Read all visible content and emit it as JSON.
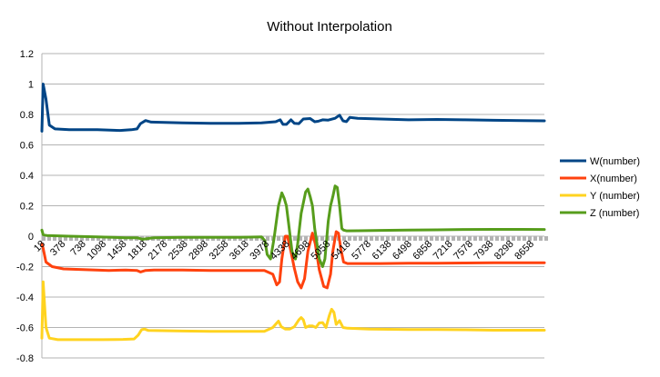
{
  "chart_data": {
    "type": "line",
    "title": "Without Interpolation",
    "ylim": [
      -0.8,
      1.2
    ],
    "y_ticks": [
      -0.8,
      -0.6,
      -0.4,
      -0.2,
      0,
      0.2,
      0.4,
      0.6,
      0.8,
      1,
      1.2
    ],
    "y_tick_labels": [
      "-0.8",
      "-0.6",
      "-0.4",
      "-0.2",
      "0",
      "0.2",
      "0.4",
      "0.6",
      "0.8",
      "1",
      "1.2"
    ],
    "x_range": [
      18,
      8900
    ],
    "x_ticks": [
      18,
      378,
      738,
      1098,
      1458,
      1818,
      2178,
      2538,
      2898,
      3258,
      3618,
      3978,
      4338,
      4698,
      5058,
      5418,
      5778,
      6138,
      6498,
      6858,
      7218,
      7578,
      7938,
      8298,
      8658
    ],
    "x_tick_labels": [
      "18",
      "378",
      "738",
      "1098",
      "1458",
      "1818",
      "2178",
      "2538",
      "2898",
      "3258",
      "3618",
      "3978",
      "4338",
      "4698",
      "5058",
      "5418",
      "5778",
      "6138",
      "6498",
      "6858",
      "7218",
      "7578",
      "7938",
      "8298",
      "8658"
    ],
    "grid": "horizontal",
    "legend_position": "right",
    "series": [
      {
        "name": "W(number)",
        "color": "#004586",
        "points": [
          [
            18,
            0.69
          ],
          [
            40,
            1.0
          ],
          [
            90,
            0.9
          ],
          [
            150,
            0.73
          ],
          [
            250,
            0.705
          ],
          [
            500,
            0.7
          ],
          [
            1000,
            0.7
          ],
          [
            1400,
            0.695
          ],
          [
            1600,
            0.7
          ],
          [
            1700,
            0.705
          ],
          [
            1760,
            0.74
          ],
          [
            1850,
            0.76
          ],
          [
            1950,
            0.75
          ],
          [
            2500,
            0.745
          ],
          [
            3000,
            0.742
          ],
          [
            3500,
            0.742
          ],
          [
            3900,
            0.745
          ],
          [
            4150,
            0.752
          ],
          [
            4230,
            0.765
          ],
          [
            4280,
            0.735
          ],
          [
            4340,
            0.735
          ],
          [
            4420,
            0.765
          ],
          [
            4480,
            0.742
          ],
          [
            4560,
            0.74
          ],
          [
            4640,
            0.77
          ],
          [
            4760,
            0.773
          ],
          [
            4840,
            0.752
          ],
          [
            4900,
            0.755
          ],
          [
            4980,
            0.765
          ],
          [
            5080,
            0.763
          ],
          [
            5200,
            0.775
          ],
          [
            5280,
            0.795
          ],
          [
            5340,
            0.758
          ],
          [
            5400,
            0.753
          ],
          [
            5460,
            0.78
          ],
          [
            5600,
            0.775
          ],
          [
            6000,
            0.77
          ],
          [
            6500,
            0.765
          ],
          [
            7000,
            0.767
          ],
          [
            7500,
            0.765
          ],
          [
            8000,
            0.762
          ],
          [
            8500,
            0.76
          ],
          [
            8900,
            0.758
          ]
        ]
      },
      {
        "name": "X(number)",
        "color": "#ff420e",
        "points": [
          [
            18,
            -0.05
          ],
          [
            40,
            -0.08
          ],
          [
            90,
            -0.17
          ],
          [
            200,
            -0.2
          ],
          [
            400,
            -0.215
          ],
          [
            800,
            -0.22
          ],
          [
            1200,
            -0.225
          ],
          [
            1500,
            -0.222
          ],
          [
            1700,
            -0.225
          ],
          [
            1760,
            -0.235
          ],
          [
            1850,
            -0.225
          ],
          [
            2000,
            -0.222
          ],
          [
            2500,
            -0.222
          ],
          [
            3000,
            -0.225
          ],
          [
            3500,
            -0.225
          ],
          [
            3950,
            -0.225
          ],
          [
            4100,
            -0.25
          ],
          [
            4170,
            -0.32
          ],
          [
            4220,
            -0.3
          ],
          [
            4260,
            -0.15
          ],
          [
            4320,
            0.0
          ],
          [
            4360,
            0.0
          ],
          [
            4420,
            -0.1
          ],
          [
            4480,
            -0.21
          ],
          [
            4540,
            -0.3
          ],
          [
            4600,
            -0.34
          ],
          [
            4660,
            -0.28
          ],
          [
            4720,
            -0.1
          ],
          [
            4800,
            0.02
          ],
          [
            4850,
            -0.05
          ],
          [
            4920,
            -0.22
          ],
          [
            5000,
            -0.33
          ],
          [
            5060,
            -0.34
          ],
          [
            5120,
            -0.25
          ],
          [
            5160,
            -0.1
          ],
          [
            5220,
            0.03
          ],
          [
            5260,
            0.02
          ],
          [
            5300,
            -0.08
          ],
          [
            5350,
            -0.17
          ],
          [
            5420,
            -0.18
          ],
          [
            5600,
            -0.18
          ],
          [
            6000,
            -0.18
          ],
          [
            6500,
            -0.178
          ],
          [
            7000,
            -0.178
          ],
          [
            7500,
            -0.176
          ],
          [
            8000,
            -0.175
          ],
          [
            8500,
            -0.175
          ],
          [
            8900,
            -0.175
          ]
        ]
      },
      {
        "name": "Y (number)",
        "color": "#ffd320",
        "points": [
          [
            18,
            -0.67
          ],
          [
            40,
            -0.3
          ],
          [
            90,
            -0.6
          ],
          [
            150,
            -0.67
          ],
          [
            300,
            -0.68
          ],
          [
            700,
            -0.68
          ],
          [
            1100,
            -0.68
          ],
          [
            1450,
            -0.678
          ],
          [
            1650,
            -0.675
          ],
          [
            1720,
            -0.65
          ],
          [
            1780,
            -0.615
          ],
          [
            1830,
            -0.61
          ],
          [
            1900,
            -0.62
          ],
          [
            2500,
            -0.623
          ],
          [
            3000,
            -0.625
          ],
          [
            3500,
            -0.625
          ],
          [
            3950,
            -0.625
          ],
          [
            4100,
            -0.6
          ],
          [
            4160,
            -0.575
          ],
          [
            4200,
            -0.558
          ],
          [
            4250,
            -0.595
          ],
          [
            4320,
            -0.61
          ],
          [
            4400,
            -0.61
          ],
          [
            4480,
            -0.595
          ],
          [
            4560,
            -0.55
          ],
          [
            4600,
            -0.535
          ],
          [
            4640,
            -0.55
          ],
          [
            4680,
            -0.6
          ],
          [
            4740,
            -0.59
          ],
          [
            4800,
            -0.59
          ],
          [
            4860,
            -0.6
          ],
          [
            4920,
            -0.57
          ],
          [
            4980,
            -0.568
          ],
          [
            5040,
            -0.6
          ],
          [
            5100,
            -0.52
          ],
          [
            5140,
            -0.48
          ],
          [
            5180,
            -0.5
          ],
          [
            5220,
            -0.58
          ],
          [
            5280,
            -0.555
          ],
          [
            5340,
            -0.6
          ],
          [
            5420,
            -0.605
          ],
          [
            5800,
            -0.61
          ],
          [
            6500,
            -0.613
          ],
          [
            7000,
            -0.613
          ],
          [
            7500,
            -0.615
          ],
          [
            8000,
            -0.618
          ],
          [
            8500,
            -0.618
          ],
          [
            8900,
            -0.618
          ]
        ]
      },
      {
        "name": "Z (number)",
        "color": "#579d1c",
        "points": [
          [
            18,
            0.04
          ],
          [
            40,
            0.01
          ],
          [
            100,
            0.005
          ],
          [
            500,
            0.0
          ],
          [
            1000,
            -0.005
          ],
          [
            1500,
            -0.01
          ],
          [
            1700,
            -0.01
          ],
          [
            1800,
            -0.02
          ],
          [
            2000,
            -0.01
          ],
          [
            2500,
            -0.008
          ],
          [
            3000,
            -0.008
          ],
          [
            3500,
            -0.008
          ],
          [
            3900,
            -0.005
          ],
          [
            3960,
            -0.03
          ],
          [
            4000,
            -0.12
          ],
          [
            4060,
            -0.15
          ],
          [
            4120,
            -0.02
          ],
          [
            4200,
            0.2
          ],
          [
            4260,
            0.285
          ],
          [
            4300,
            0.25
          ],
          [
            4340,
            0.2
          ],
          [
            4380,
            0.08
          ],
          [
            4440,
            -0.1
          ],
          [
            4500,
            -0.15
          ],
          [
            4540,
            -0.05
          ],
          [
            4600,
            0.15
          ],
          [
            4680,
            0.29
          ],
          [
            4720,
            0.31
          ],
          [
            4760,
            0.26
          ],
          [
            4800,
            0.2
          ],
          [
            4840,
            0.05
          ],
          [
            4920,
            -0.15
          ],
          [
            4980,
            -0.2
          ],
          [
            5020,
            -0.15
          ],
          [
            5080,
            0.1
          ],
          [
            5120,
            0.2
          ],
          [
            5160,
            0.26
          ],
          [
            5200,
            0.33
          ],
          [
            5240,
            0.32
          ],
          [
            5280,
            0.2
          ],
          [
            5320,
            0.05
          ],
          [
            5350,
            0.04
          ],
          [
            5400,
            0.035
          ],
          [
            5600,
            0.036
          ],
          [
            6000,
            0.038
          ],
          [
            6500,
            0.04
          ],
          [
            7000,
            0.042
          ],
          [
            7500,
            0.044
          ],
          [
            8000,
            0.045
          ],
          [
            8500,
            0.045
          ],
          [
            8900,
            0.044
          ]
        ]
      }
    ]
  }
}
